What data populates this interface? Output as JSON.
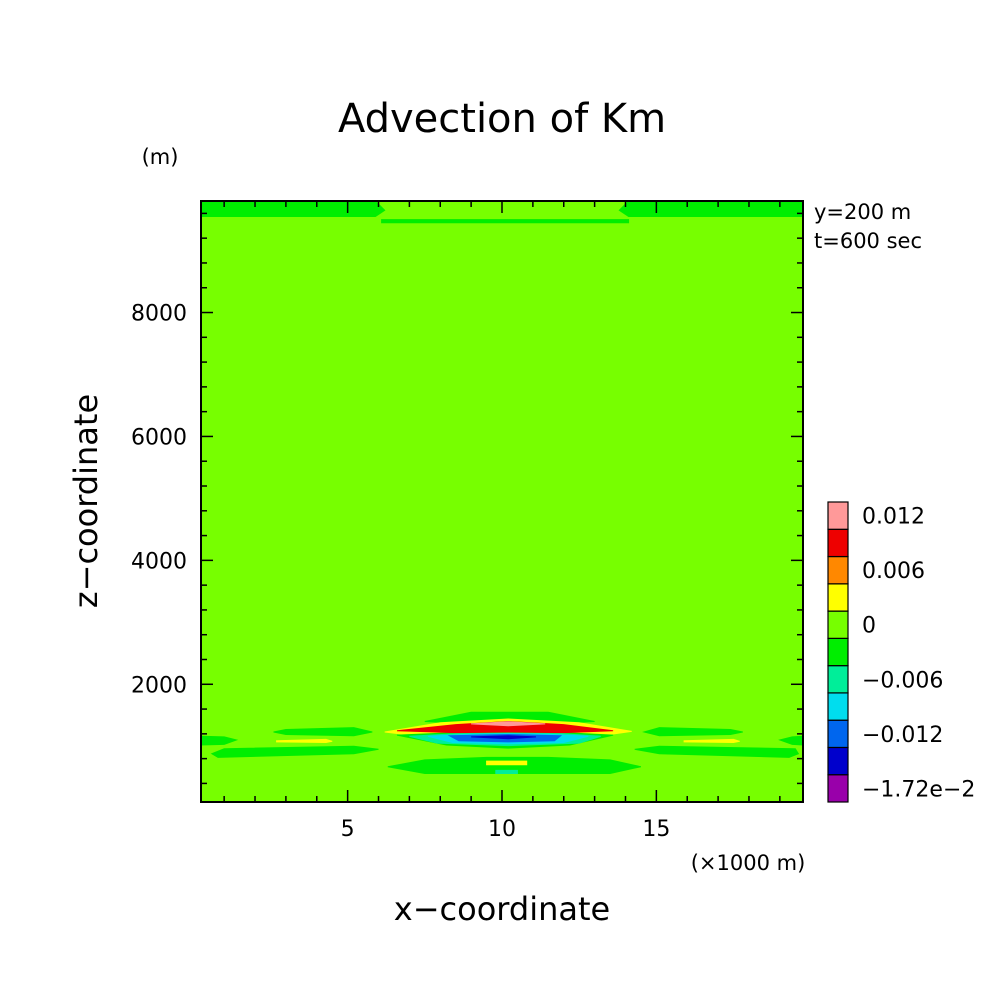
{
  "chart_data": {
    "type": "contour",
    "title": "Advection of Km",
    "xlabel": "x−coordinate",
    "ylabel": "z−coordinate",
    "xunit": "(×1000 m)",
    "yunit": "(m)",
    "annotations": [
      "y=200 m",
      "t=600 sec"
    ],
    "xlim": [
      0.25,
      19.75
    ],
    "ylim": [
      100,
      9800
    ],
    "xticks": [
      {
        "value": 5,
        "label": "5"
      },
      {
        "value": 10,
        "label": "10"
      },
      {
        "value": 15,
        "label": "15"
      }
    ],
    "yticks": [
      {
        "value": 2000,
        "label": "2000"
      },
      {
        "value": 4000,
        "label": "4000"
      },
      {
        "value": 6000,
        "label": "6000"
      },
      {
        "value": 8000,
        "label": "8000"
      }
    ],
    "grid": false,
    "colorbar": {
      "position": "right",
      "levels": [
        {
          "color": "#9900aa",
          "label": "−1.72e−2"
        },
        {
          "color": "#0000cc",
          "label": ""
        },
        {
          "color": "#0066ee",
          "label": "−0.012"
        },
        {
          "color": "#00ddee",
          "label": ""
        },
        {
          "color": "#00ee99",
          "label": "−0.006"
        },
        {
          "color": "#00ee00",
          "label": ""
        },
        {
          "color": "#77ff00",
          "label": "0"
        },
        {
          "color": "#ffff00",
          "label": ""
        },
        {
          "color": "#ff8800",
          "label": "0.006"
        },
        {
          "color": "#ee0000",
          "label": ""
        },
        {
          "color": "#ff9999",
          "label": "0.012"
        }
      ]
    },
    "background_color": "#77ff00",
    "regions": [
      {
        "color": "#00ee00",
        "pts": [
          [
            0.25,
            9550
          ],
          [
            5.9,
            9550
          ],
          [
            6.2,
            9650
          ],
          [
            5.9,
            9800
          ],
          [
            0.25,
            9800
          ]
        ]
      },
      {
        "color": "#00ee00",
        "pts": [
          [
            14.1,
            9550
          ],
          [
            19.75,
            9550
          ],
          [
            19.75,
            9800
          ],
          [
            14.1,
            9800
          ],
          [
            13.8,
            9650
          ]
        ]
      },
      {
        "color": "#00ee00",
        "pts": [
          [
            6.1,
            9450
          ],
          [
            14.1,
            9450
          ],
          [
            14.1,
            9500
          ],
          [
            6.1,
            9500
          ]
        ]
      },
      {
        "color": "#00ee00",
        "pts": [
          [
            7.5,
            1400
          ],
          [
            9.0,
            1550
          ],
          [
            11.5,
            1550
          ],
          [
            13.0,
            1400
          ],
          [
            10.2,
            1330
          ]
        ]
      },
      {
        "color": "#00ee00",
        "pts": [
          [
            3.0,
            1270
          ],
          [
            5.2,
            1300
          ],
          [
            5.8,
            1230
          ],
          [
            5.2,
            1170
          ],
          [
            3.0,
            1190
          ],
          [
            2.6,
            1230
          ]
        ]
      },
      {
        "color": "#00ee00",
        "pts": [
          [
            14.6,
            1230
          ],
          [
            15.1,
            1300
          ],
          [
            17.4,
            1270
          ],
          [
            17.8,
            1230
          ],
          [
            17.4,
            1190
          ],
          [
            15.1,
            1170
          ]
        ]
      },
      {
        "color": "#00ee00",
        "pts": [
          [
            0.25,
            1160
          ],
          [
            1.0,
            1150
          ],
          [
            1.4,
            1100
          ],
          [
            1.0,
            1030
          ],
          [
            0.25,
            1020
          ]
        ]
      },
      {
        "color": "#00ee00",
        "pts": [
          [
            19.75,
            1160
          ],
          [
            19.75,
            1020
          ],
          [
            19.4,
            1030
          ],
          [
            19.0,
            1100
          ],
          [
            19.4,
            1150
          ]
        ]
      },
      {
        "color": "#00ee00",
        "pts": [
          [
            0.8,
            820
          ],
          [
            5.2,
            880
          ],
          [
            6.0,
            950
          ],
          [
            5.2,
            1000
          ],
          [
            1.0,
            960
          ],
          [
            0.6,
            880
          ]
        ]
      },
      {
        "color": "#00ee00",
        "pts": [
          [
            14.3,
            950
          ],
          [
            15.1,
            1000
          ],
          [
            19.5,
            960
          ],
          [
            19.6,
            880
          ],
          [
            19.3,
            820
          ],
          [
            15.1,
            880
          ]
        ]
      },
      {
        "color": "#00ee00",
        "pts": [
          [
            6.3,
            670
          ],
          [
            7.5,
            780
          ],
          [
            9.5,
            820
          ],
          [
            11.5,
            820
          ],
          [
            13.5,
            780
          ],
          [
            14.5,
            670
          ],
          [
            13.5,
            560
          ],
          [
            7.5,
            560
          ]
        ]
      },
      {
        "color": "#ffff00",
        "pts": [
          [
            9.5,
            700
          ],
          [
            10.8,
            700
          ],
          [
            10.8,
            760
          ],
          [
            9.5,
            760
          ]
        ]
      },
      {
        "color": "#00ee99",
        "pts": [
          [
            9.8,
            560
          ],
          [
            10.5,
            560
          ],
          [
            10.5,
            610
          ],
          [
            9.8,
            610
          ]
        ]
      },
      {
        "color": "#ffff00",
        "pts": [
          [
            6.2,
            1230
          ],
          [
            8.0,
            1380
          ],
          [
            10.2,
            1440
          ],
          [
            12.5,
            1380
          ],
          [
            14.2,
            1240
          ],
          [
            12.5,
            1120
          ],
          [
            10.2,
            1080
          ],
          [
            8.0,
            1120
          ]
        ]
      },
      {
        "color": "#00ee00",
        "pts": [
          [
            6.6,
            1180
          ],
          [
            8.5,
            1220
          ],
          [
            10.2,
            1240
          ],
          [
            12.0,
            1220
          ],
          [
            13.6,
            1180
          ],
          [
            12.2,
            1020
          ],
          [
            10.2,
            970
          ],
          [
            8.2,
            1020
          ]
        ]
      },
      {
        "color": "#ee0000",
        "pts": [
          [
            6.6,
            1250
          ],
          [
            8.5,
            1350
          ],
          [
            10.2,
            1400
          ],
          [
            12.0,
            1350
          ],
          [
            13.6,
            1250
          ],
          [
            12.0,
            1220
          ],
          [
            10.2,
            1230
          ],
          [
            8.5,
            1220
          ]
        ]
      },
      {
        "color": "#ff9999",
        "pts": [
          [
            9.0,
            1360
          ],
          [
            10.2,
            1395
          ],
          [
            11.4,
            1360
          ],
          [
            10.2,
            1330
          ]
        ]
      },
      {
        "color": "#00ee99",
        "pts": [
          [
            7.0,
            1160
          ],
          [
            8.5,
            1200
          ],
          [
            10.2,
            1210
          ],
          [
            12.0,
            1200
          ],
          [
            13.2,
            1160
          ],
          [
            12.5,
            1050
          ],
          [
            10.2,
            1010
          ],
          [
            7.9,
            1050
          ]
        ]
      },
      {
        "color": "#00ddee",
        "pts": [
          [
            7.6,
            1160
          ],
          [
            9.0,
            1195
          ],
          [
            10.2,
            1200
          ],
          [
            11.5,
            1195
          ],
          [
            12.8,
            1160
          ],
          [
            12.0,
            1060
          ],
          [
            10.2,
            1040
          ],
          [
            8.4,
            1060
          ]
        ]
      },
      {
        "color": "#0066ee",
        "pts": [
          [
            8.3,
            1170
          ],
          [
            10.2,
            1190
          ],
          [
            11.9,
            1170
          ],
          [
            11.7,
            1090
          ],
          [
            10.2,
            1070
          ],
          [
            8.6,
            1090
          ]
        ]
      },
      {
        "color": "#0000cc",
        "pts": [
          [
            9.0,
            1150
          ],
          [
            10.2,
            1170
          ],
          [
            11.1,
            1150
          ],
          [
            10.2,
            1120
          ]
        ]
      },
      {
        "color": "#ffff00",
        "pts": [
          [
            2.7,
            1090
          ],
          [
            4.3,
            1110
          ],
          [
            4.5,
            1080
          ],
          [
            4.3,
            1060
          ],
          [
            2.7,
            1070
          ]
        ]
      },
      {
        "color": "#ffff00",
        "pts": [
          [
            15.9,
            1090
          ],
          [
            17.5,
            1110
          ],
          [
            17.7,
            1080
          ],
          [
            17.5,
            1060
          ],
          [
            15.9,
            1070
          ]
        ]
      }
    ]
  }
}
